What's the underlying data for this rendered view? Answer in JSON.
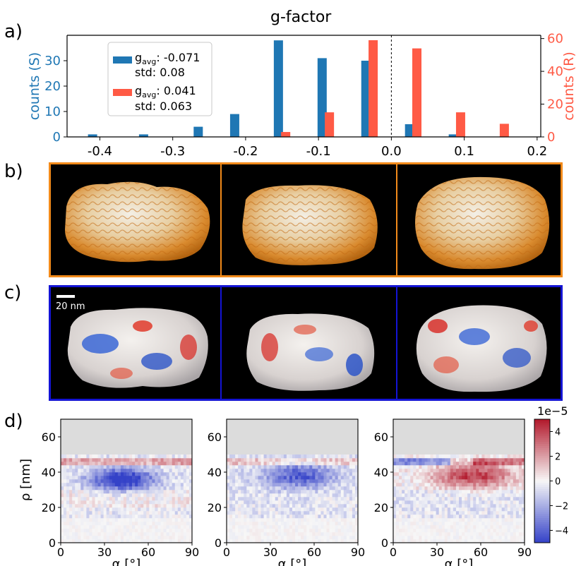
{
  "panels": {
    "a": "a)",
    "b": "b)",
    "c": "c)",
    "d": "d)"
  },
  "hist": {
    "title": "g-factor",
    "ylabel_left": "counts (S)",
    "ylabel_right": "counts (R)",
    "color_left": "#1f77b4",
    "color_right": "#ff5a45",
    "legend": {
      "S": {
        "prefix": "g",
        "subscript": "avg",
        "mean": ": -0.071",
        "std": "std: 0.08"
      },
      "R": {
        "prefix": "g",
        "subscript": "avg",
        "mean": ": 0.041",
        "std": "std: 0.063"
      }
    },
    "x_ticks": [
      "-0.4",
      "-0.3",
      "-0.2",
      "-0.1",
      "0.0",
      "0.1",
      "0.2"
    ],
    "x_tick_values": [
      -0.4,
      -0.3,
      -0.2,
      -0.1,
      0.0,
      0.1,
      0.2
    ],
    "y_left_ticks": [
      "0",
      "10",
      "20",
      "30"
    ],
    "y_right_ticks": [
      "0",
      "20",
      "40",
      "60"
    ]
  },
  "chart_data": [
    {
      "type": "bar",
      "series": [
        {
          "color": "#1f77b4",
          "x": [
            -0.41,
            -0.34,
            -0.265,
            -0.215,
            -0.155,
            -0.095,
            -0.035,
            0.025,
            0.085
          ],
          "values": [
            1,
            1,
            4,
            9,
            38,
            31,
            30,
            5,
            1
          ]
        },
        {
          "color": "#ff5a45",
          "x": [
            -0.145,
            -0.085,
            -0.025,
            0.035,
            0.095,
            0.155
          ],
          "values": [
            3,
            15,
            59,
            54,
            15,
            8
          ]
        }
      ],
      "xlim": [
        -0.445,
        0.205
      ],
      "ylim_left": [
        0,
        40
      ],
      "ylim_right": [
        0,
        62
      ],
      "dashed_vline_x": 0.0
    },
    {
      "type": "heatmap",
      "xlabel": "α [°]",
      "ylabel": "ρ [nm]",
      "x_ticks": [
        "0",
        "30",
        "60",
        "90"
      ],
      "y_ticks": [
        "0",
        "20",
        "40",
        "60"
      ],
      "xlim": [
        0,
        90
      ],
      "ylim": [
        0,
        70
      ],
      "colorbar": {
        "exponent": "1e−5",
        "ticks": [
          "4",
          "2",
          "0",
          "−2",
          "−4"
        ],
        "range": [
          -5,
          5
        ]
      }
    }
  ],
  "images": {
    "b_border": "#f28a1a",
    "c_border": "#1414d4",
    "scale_label": "20 nm"
  }
}
